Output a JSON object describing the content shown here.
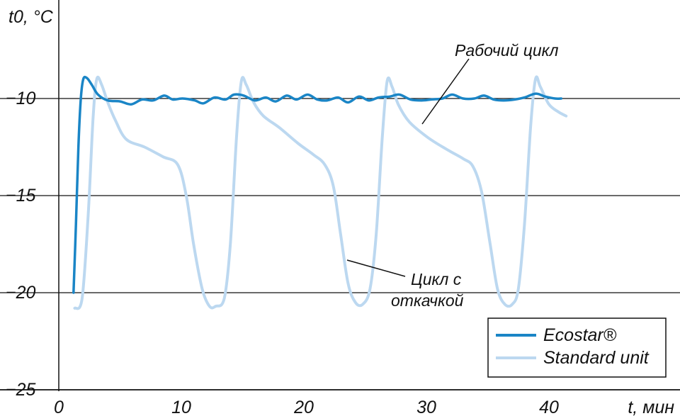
{
  "chart_data": {
    "type": "line",
    "ylabel": "t0, °C",
    "xlabel": "t, мин",
    "xlim": [
      0,
      50
    ],
    "ylim": [
      -25,
      -5
    ],
    "x_ticks": [
      0,
      10,
      20,
      30,
      40
    ],
    "y_ticks": [
      -10,
      -15,
      -20,
      -25
    ],
    "y_tick_labels": [
      "−10",
      "−15",
      "−20",
      "−25"
    ],
    "grid": "horizontal",
    "legend_position": "bottom-right",
    "annotations": [
      {
        "text_lines": [
          "Рабочий цикл"
        ],
        "target_series": "Standard unit"
      },
      {
        "text_lines": [
          "Цикл с",
          "откачкой"
        ],
        "target_series": "Standard unit"
      }
    ],
    "colors": {
      "Ecostar®": "#1a85c6",
      "Standard unit": "#bcd8f0"
    },
    "series": [
      {
        "name": "Ecostar®",
        "x": [
          1.2,
          1.4,
          1.6,
          1.8,
          2.0,
          2.3,
          2.7,
          3.2,
          4.0,
          5.0,
          5.9,
          6.8,
          7.7,
          8.6,
          9.3,
          10.1,
          11.1,
          11.8,
          12.7,
          13.6,
          14.3,
          15.1,
          16.0,
          16.9,
          17.7,
          18.6,
          19.4,
          20.3,
          21.1,
          21.9,
          22.8,
          23.6,
          24.5,
          25.3,
          26.1,
          27.0,
          27.8,
          28.7,
          29.6,
          30.4,
          31.3,
          32.1,
          33.0,
          33.9,
          34.7,
          35.5,
          36.3,
          37.2,
          38.0,
          38.9,
          39.7,
          40.5,
          41.0
        ],
        "y": [
          -20.0,
          -16.5,
          -12.5,
          -10.0,
          -9.0,
          -8.95,
          -9.3,
          -9.8,
          -10.1,
          -10.15,
          -10.3,
          -10.05,
          -10.1,
          -9.85,
          -10.05,
          -10.0,
          -10.1,
          -10.25,
          -9.95,
          -10.05,
          -9.8,
          -9.85,
          -10.1,
          -9.95,
          -10.15,
          -9.85,
          -10.05,
          -9.8,
          -10.05,
          -10.1,
          -9.95,
          -10.2,
          -9.9,
          -10.1,
          -9.95,
          -9.9,
          -9.8,
          -10.05,
          -10.1,
          -10.05,
          -10.0,
          -9.8,
          -10.0,
          -10.0,
          -9.85,
          -10.05,
          -10.1,
          -10.05,
          -9.95,
          -9.75,
          -9.9,
          -10.0,
          -10.0
        ]
      },
      {
        "name": "Standard unit",
        "x": [
          1.3,
          1.9,
          2.4,
          2.8,
          3.1,
          3.5,
          4.0,
          4.6,
          5.5,
          7.0,
          8.5,
          9.7,
          10.4,
          11.0,
          11.7,
          12.3,
          12.8,
          13.5,
          14.0,
          14.5,
          14.9,
          15.3,
          15.9,
          16.7,
          18.0,
          19.5,
          20.8,
          21.7,
          22.4,
          23.0,
          23.6,
          24.2,
          24.8,
          25.4,
          25.9,
          26.4,
          26.8,
          27.2,
          27.7,
          28.6,
          30.1,
          31.6,
          33.0,
          33.8,
          34.5,
          35.2,
          35.8,
          36.4,
          37.0,
          37.5,
          38.0,
          38.5,
          38.9,
          39.3,
          40.0,
          40.8,
          41.4
        ],
        "y": [
          -20.8,
          -20.3,
          -16.0,
          -11.0,
          -9.0,
          -9.3,
          -10.2,
          -11.1,
          -12.1,
          -12.5,
          -13.0,
          -13.4,
          -15.0,
          -17.5,
          -19.8,
          -20.7,
          -20.7,
          -20.3,
          -17.5,
          -12.0,
          -9.1,
          -9.3,
          -10.2,
          -10.9,
          -11.5,
          -12.3,
          -12.9,
          -13.4,
          -14.5,
          -17.0,
          -19.5,
          -20.5,
          -20.6,
          -19.8,
          -17.0,
          -12.0,
          -9.1,
          -9.4,
          -10.3,
          -11.2,
          -12.0,
          -12.6,
          -13.1,
          -13.5,
          -14.8,
          -17.5,
          -19.8,
          -20.6,
          -20.6,
          -19.8,
          -16.5,
          -11.5,
          -9.0,
          -9.4,
          -10.3,
          -10.7,
          -10.9
        ]
      }
    ]
  }
}
